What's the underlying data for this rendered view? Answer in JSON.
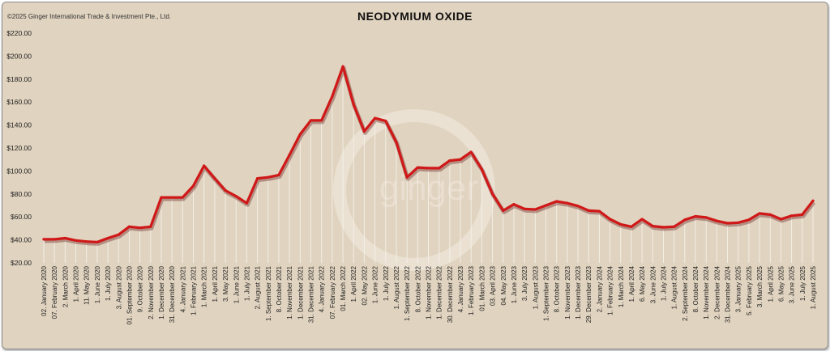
{
  "header": {
    "copyright": "©2025 Ginger International Trade & Investment Pte., Ltd.",
    "title": "NEODYMIUM OXIDE"
  },
  "watermark": {
    "text": "ginger"
  },
  "colors": {
    "background": "#e0d3bf",
    "line": "#d01818",
    "drop_lines": "#f4efe7"
  },
  "chart_data": {
    "type": "line",
    "title": "NEODYMIUM OXIDE",
    "xlabel": "",
    "ylabel": "",
    "ylim": [
      20,
      220
    ],
    "y_ticks": [
      "$20.00",
      "$40.00",
      "$60.00",
      "$80.00",
      "$100.00",
      "$120.00",
      "$140.00",
      "$160.00",
      "$180.00",
      "$200.00",
      "$220.00"
    ],
    "grid": false,
    "drop_lines": true,
    "x_tick_labels": [
      "02. January 2020",
      "07. February 2020",
      "2. March 2020",
      "1. April 2020",
      "11. May 2020",
      "1. June 2020",
      "1. July 2020",
      "3. August 2020",
      "01. September 2020",
      "9. October 2020",
      "2. November 2020",
      "1. December 2020",
      "31. December 2020",
      "4. January 2021",
      "1. February 2021",
      "1. March 2021",
      "1. April 2021",
      "3. May 2021",
      "1. June 2021",
      "1. July 2021",
      "2. August 2021",
      "1. September 2021",
      "8. October 2021",
      "1. November 2021",
      "1. December 2021",
      "31. December 2021",
      "4. January 2022",
      "07. February 2022",
      "01. March 2022",
      "1. April 2022",
      "02. May 2022",
      "1. June 2022",
      "1. July 2022",
      "1. August 2022",
      "1. September 2022",
      "8. October 2022",
      "1. November 2022",
      "1. December 2022",
      "30. December 2022",
      "4. January 2023",
      "1. February 2023",
      "01. March 2023",
      "03. April 2023",
      "04. May 2023",
      "1. June 2023",
      "3. July 2023",
      "1. August 2023",
      "1. September 2023",
      "8. October 2023",
      "1. November 2023",
      "1. December 2023",
      "29. December 2023",
      "2. January 2024",
      "1. February 2024",
      "1. March 2024",
      "1. April 2024",
      "6. May 2024",
      "3. June 2024",
      "1. July 2024",
      "1. August 2024",
      "2. September 2024",
      "8. October 2024",
      "1. November 2024",
      "2. December 2024",
      "31. December 2024",
      "3. January 2025",
      "5. February 2025",
      "3. March 2025",
      "1. April 2025",
      "6. May 2025",
      "3. June 2025",
      "1. July 2025",
      "1. August 2025"
    ],
    "series": [
      {
        "values": [
          40.5,
          40.5,
          41.5,
          39.5,
          38.5,
          38,
          41.5,
          44.5,
          51.5,
          50.5,
          51.5,
          77,
          77,
          77,
          87,
          104.5,
          93.5,
          83,
          78,
          72,
          93.5,
          94.5,
          96.5,
          114,
          132,
          144,
          144,
          165,
          191,
          158,
          134.5,
          146,
          143.5,
          125,
          94.5,
          103,
          102.5,
          102.5,
          109,
          110,
          116.5,
          101.5,
          80,
          65.5,
          71,
          67,
          66.5,
          70,
          73.5,
          72,
          69.5,
          65.5,
          65,
          58,
          53.5,
          51.5,
          58,
          52,
          51,
          51.5,
          57.5,
          60.5,
          59.5,
          56.5,
          54.5,
          55,
          57.5,
          63,
          62,
          58,
          61,
          62,
          74
        ]
      }
    ]
  }
}
